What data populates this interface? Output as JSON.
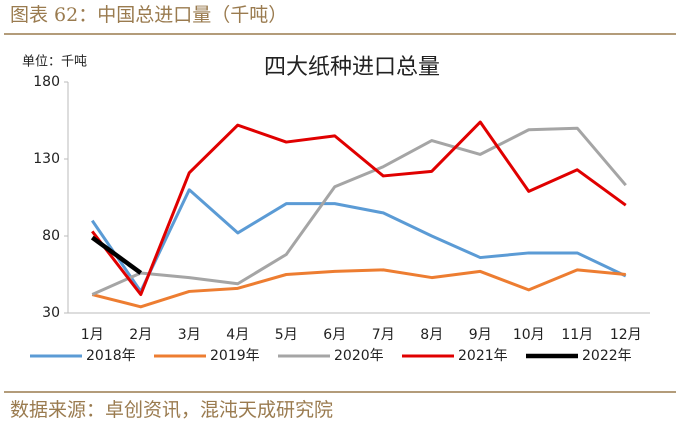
{
  "header": {
    "title": "图表 62：中国总进口量（千吨）"
  },
  "chart_data": {
    "type": "line",
    "title": "四大纸种进口总量",
    "unit_label": "单位：千吨",
    "categories": [
      "1月",
      "2月",
      "3月",
      "4月",
      "5月",
      "6月",
      "7月",
      "8月",
      "9月",
      "10月",
      "11月",
      "12月"
    ],
    "series": [
      {
        "name": "2018年",
        "color": "#5b9bd5",
        "values": [
          90,
          44,
          110,
          82,
          101,
          101,
          95,
          80,
          66,
          69,
          69,
          54
        ]
      },
      {
        "name": "2019年",
        "color": "#ed7d31",
        "values": [
          42,
          34,
          44,
          46,
          55,
          57,
          58,
          53,
          57,
          45,
          58,
          55
        ]
      },
      {
        "name": "2020年",
        "color": "#a5a5a5",
        "values": [
          42,
          56,
          53,
          49,
          68,
          112,
          125,
          142,
          133,
          149,
          150,
          113
        ]
      },
      {
        "name": "2021年",
        "color": "#e00000",
        "values": [
          83,
          42,
          121,
          152,
          141,
          145,
          119,
          122,
          154,
          109,
          123,
          100
        ]
      },
      {
        "name": "2022年",
        "color": "#000000",
        "values": [
          79,
          56,
          null,
          null,
          null,
          null,
          null,
          null,
          null,
          null,
          null,
          null
        ]
      }
    ],
    "ylim": [
      30,
      180
    ],
    "yticks": [
      30,
      80,
      130,
      180
    ],
    "legend": "bottom"
  },
  "footer": {
    "source": "数据来源：卓创资讯，混沌天成研究院"
  }
}
